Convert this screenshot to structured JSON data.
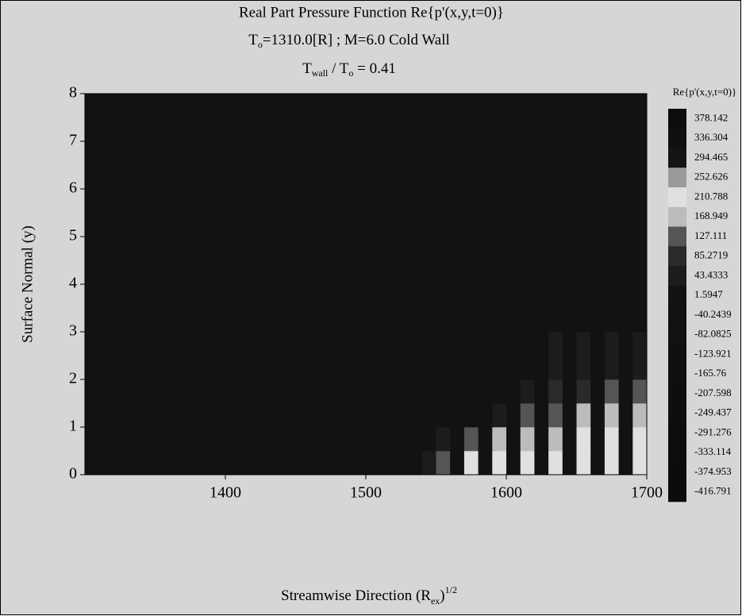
{
  "chart_data": {
    "type": "contour",
    "title": "Real Part Pressure Function Re{p'(x,y,t=0)}",
    "subtitle": [
      "T",
      "o",
      "=1310.0[R] ; M=6.0 Cold Wall"
    ],
    "subtitle2": [
      "T",
      "wall",
      " / T",
      "o",
      " = 0.41"
    ],
    "xlabel": [
      "Streamwise Direction (R",
      "ex",
      ")",
      "1/2"
    ],
    "ylabel": "Surface Normal (y)",
    "xlim": [
      1300,
      1700
    ],
    "xticks": [
      1400,
      1500,
      1600,
      1700
    ],
    "ylim": [
      0,
      8
    ],
    "yticks": [
      0,
      1,
      2,
      3,
      4,
      5,
      6,
      7,
      8
    ],
    "colorbar_title": "Re{p'(x,y,t=0)}",
    "levels": [
      378.142,
      336.304,
      294.465,
      252.626,
      210.788,
      168.949,
      127.111,
      85.2719,
      43.4333,
      1.5947,
      -40.2439,
      -82.0825,
      -123.921,
      -165.76,
      -207.598,
      -249.437,
      -291.276,
      -333.114,
      -374.953,
      -416.791
    ],
    "colors": [
      "#0d0d0d",
      "#101010",
      "#141414",
      "#9a9a9a",
      "#e0e0e0",
      "#bcbcbc",
      "#555555",
      "#2a2a2a",
      "#1c1c1c",
      "#121212",
      "#111111",
      "#111111",
      "#0f0f0f",
      "#0f0f0f",
      "#0e0e0e",
      "#0e0e0e",
      "#0d0d0d",
      "#0d0d0d",
      "#0c0c0c",
      "#0c0c0c"
    ],
    "x_edges": [
      1300,
      1310,
      1320,
      1330,
      1340,
      1350,
      1360,
      1370,
      1380,
      1390,
      1400,
      1410,
      1420,
      1430,
      1440,
      1450,
      1460,
      1470,
      1480,
      1490,
      1500,
      1510,
      1520,
      1530,
      1540,
      1550,
      1560,
      1570,
      1580,
      1590,
      1600,
      1610,
      1620,
      1630,
      1640,
      1650,
      1660,
      1670,
      1680,
      1690,
      1700
    ],
    "y_edges": [
      0,
      0.5,
      1,
      1.5,
      2,
      3,
      4,
      5,
      6,
      7,
      8
    ],
    "z": [
      [
        0,
        0,
        0,
        0,
        0,
        0,
        0,
        0,
        0,
        0,
        0,
        0,
        0,
        0,
        0,
        0,
        0,
        0,
        0,
        0,
        0,
        0,
        0,
        0,
        40,
        130,
        0,
        200,
        0,
        210,
        0,
        210,
        0,
        210,
        0,
        210,
        0,
        210,
        0,
        210
      ],
      [
        0,
        0,
        0,
        0,
        0,
        0,
        0,
        0,
        0,
        0,
        0,
        0,
        0,
        0,
        0,
        0,
        0,
        0,
        0,
        0,
        0,
        0,
        0,
        0,
        0,
        60,
        0,
        130,
        0,
        170,
        0,
        170,
        0,
        170,
        0,
        200,
        0,
        200,
        0,
        200
      ],
      [
        0,
        0,
        0,
        0,
        0,
        0,
        0,
        0,
        0,
        0,
        0,
        0,
        0,
        0,
        0,
        0,
        0,
        0,
        0,
        0,
        0,
        0,
        0,
        0,
        0,
        0,
        0,
        0,
        0,
        40,
        0,
        130,
        0,
        130,
        0,
        170,
        0,
        170,
        0,
        170
      ],
      [
        0,
        0,
        0,
        0,
        0,
        0,
        0,
        0,
        0,
        0,
        0,
        0,
        0,
        0,
        0,
        0,
        0,
        0,
        0,
        0,
        0,
        0,
        0,
        0,
        0,
        0,
        0,
        0,
        0,
        0,
        0,
        40,
        0,
        80,
        0,
        80,
        0,
        130,
        0,
        130
      ],
      [
        0,
        0,
        0,
        0,
        0,
        0,
        0,
        0,
        0,
        0,
        0,
        0,
        0,
        0,
        0,
        0,
        0,
        0,
        0,
        0,
        0,
        0,
        0,
        0,
        0,
        0,
        0,
        0,
        0,
        0,
        0,
        0,
        0,
        40,
        0,
        40,
        0,
        40,
        0,
        40
      ],
      [
        0,
        0,
        0,
        0,
        0,
        0,
        0,
        0,
        0,
        0,
        0,
        0,
        0,
        0,
        0,
        0,
        0,
        0,
        0,
        0,
        0,
        0,
        0,
        0,
        0,
        0,
        0,
        0,
        0,
        0,
        0,
        0,
        0,
        0,
        0,
        0,
        0,
        0,
        0,
        0
      ],
      [
        0,
        0,
        0,
        0,
        0,
        0,
        0,
        0,
        0,
        0,
        0,
        0,
        0,
        0,
        0,
        0,
        0,
        0,
        0,
        0,
        0,
        0,
        0,
        0,
        0,
        0,
        0,
        0,
        0,
        0,
        0,
        0,
        0,
        0,
        0,
        0,
        0,
        0,
        0,
        0
      ],
      [
        0,
        0,
        0,
        0,
        0,
        0,
        0,
        0,
        0,
        0,
        0,
        0,
        0,
        0,
        0,
        0,
        0,
        0,
        0,
        0,
        0,
        0,
        0,
        0,
        0,
        0,
        0,
        0,
        0,
        0,
        0,
        0,
        0,
        0,
        0,
        0,
        0,
        0,
        0,
        0
      ],
      [
        0,
        0,
        0,
        0,
        0,
        0,
        0,
        0,
        0,
        0,
        0,
        0,
        0,
        0,
        0,
        0,
        0,
        0,
        0,
        0,
        0,
        0,
        0,
        0,
        0,
        0,
        0,
        0,
        0,
        0,
        0,
        0,
        0,
        0,
        0,
        0,
        0,
        0,
        0,
        0
      ],
      [
        0,
        0,
        0,
        0,
        0,
        0,
        0,
        0,
        0,
        0,
        0,
        0,
        0,
        0,
        0,
        0,
        0,
        0,
        0,
        0,
        0,
        0,
        0,
        0,
        0,
        0,
        0,
        0,
        0,
        0,
        0,
        0,
        0,
        0,
        0,
        0,
        0,
        0,
        0,
        0
      ]
    ]
  }
}
